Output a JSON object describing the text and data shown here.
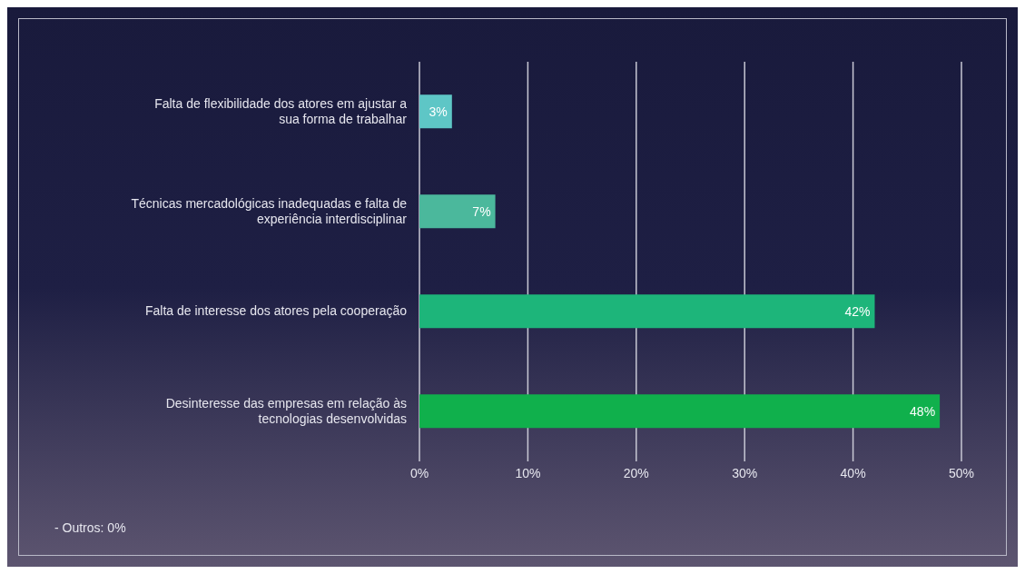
{
  "chart_data": {
    "type": "bar",
    "orientation": "horizontal",
    "categories": [
      "Falta de flexibilidade dos atores em ajustar a sua forma de trabalhar",
      "Técnicas mercadológicas inadequadas e falta de experiência interdisciplinar",
      "Falta de interesse dos atores pela cooperação",
      "Desinteresse das empresas em relação às tecnologias desenvolvidas"
    ],
    "values": [
      3,
      7,
      42,
      48
    ],
    "colors": [
      "#5ec6c6",
      "#4bb89c",
      "#1db57a",
      "#10b04c"
    ],
    "value_labels": [
      "3%",
      "7%",
      "42%",
      "48%"
    ],
    "xlim": [
      0,
      50
    ],
    "xticks": [
      {
        "value": 0,
        "label": "0%"
      },
      {
        "value": 10,
        "label": "10%"
      },
      {
        "value": 20,
        "label": "20%"
      },
      {
        "value": 30,
        "label": "30%"
      },
      {
        "value": 40,
        "label": "40%"
      },
      {
        "value": 50,
        "label": "50%"
      }
    ],
    "grid": "x",
    "annotations": [
      "- Outros: 0%"
    ]
  }
}
